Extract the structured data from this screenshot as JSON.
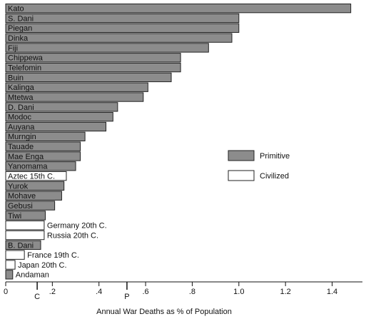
{
  "chart_data": {
    "type": "barh",
    "xlabel": "Annual War Deaths as % of Population",
    "categories": [
      "Kato",
      "S. Dani",
      "Piegan",
      "Dinka",
      "Fiji",
      "Chippewa",
      "Telefomin",
      "Buin",
      "Kalinga",
      "Mtetwa",
      "D. Dani",
      "Modoc",
      "Auyana",
      "Murngin",
      "Tauade",
      "Mae Enga",
      "Yanomama",
      "Aztec 15th C.",
      "Yurok",
      "Mohave",
      "Gebusi",
      "Tiwi",
      "Germany 20th C.",
      "Russia 20th C.",
      "B. Dani",
      "France 19th C.",
      "Japan 20th C.",
      "Andaman"
    ],
    "series": [
      {
        "name": "Primitive",
        "color": "#8c8c8c",
        "values": [
          1.48,
          1.0,
          1.0,
          0.97,
          0.87,
          0.75,
          0.75,
          0.71,
          0.61,
          0.59,
          0.48,
          0.46,
          0.43,
          0.34,
          0.32,
          0.32,
          0.3,
          null,
          0.25,
          0.24,
          0.21,
          0.17,
          null,
          null,
          0.15,
          null,
          null,
          0.03
        ]
      },
      {
        "name": "Civilized",
        "color": "#ffffff",
        "values": [
          null,
          null,
          null,
          null,
          null,
          null,
          null,
          null,
          null,
          null,
          null,
          null,
          null,
          null,
          null,
          null,
          null,
          0.26,
          null,
          null,
          null,
          null,
          0.165,
          0.165,
          null,
          0.08,
          0.04,
          null
        ]
      }
    ],
    "xlim": [
      0,
      1.53
    ],
    "xticks": [
      0,
      {
        "value": 0.2,
        "label": ".2"
      },
      {
        "value": 0.4,
        "label": ".4"
      },
      {
        "value": 0.6,
        "label": ".6"
      },
      {
        "value": 0.8,
        "label": ".8"
      },
      {
        "value": 1.0,
        "label": "1.0"
      },
      {
        "value": 1.2,
        "label": "1.2"
      },
      {
        "value": 1.4,
        "label": "1.4"
      }
    ],
    "markers": [
      {
        "label": "C",
        "value": 0.135
      },
      {
        "label": "P",
        "value": 0.52
      }
    ]
  }
}
